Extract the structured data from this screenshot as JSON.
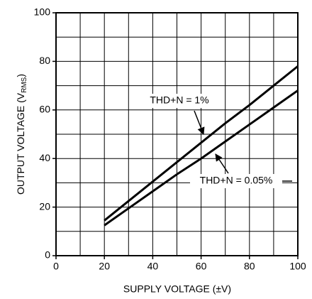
{
  "chart_data": {
    "type": "line",
    "xlabel": "SUPPLY VOLTAGE (±V)",
    "ylabel": {
      "main": "OUTPUT VOLTAGE (V",
      "sub": "RMS",
      "end": ")"
    },
    "x": [
      20,
      30,
      40,
      50,
      60,
      70,
      80,
      90,
      100
    ],
    "series": [
      {
        "name": "THD+N = 1%",
        "color": "#000000",
        "values": [
          14.5,
          22.5,
          30.5,
          38.5,
          46.5,
          54.5,
          62,
          70,
          78
        ]
      },
      {
        "name": "THD+N = 0.05%",
        "color": "#000000",
        "values": [
          12.5,
          19.5,
          26.5,
          33.5,
          40,
          47,
          54,
          61,
          68
        ]
      }
    ],
    "xlim": [
      0,
      100
    ],
    "xticks": [
      0,
      20,
      40,
      60,
      80,
      100
    ],
    "ylim": [
      0,
      100
    ],
    "yticks": [
      0,
      20,
      40,
      60,
      80,
      100
    ],
    "xgrid": [
      10,
      20,
      30,
      40,
      50,
      60,
      70,
      80,
      90
    ],
    "ygrid": [
      10,
      20,
      30,
      40,
      50,
      60,
      70,
      80,
      90
    ],
    "grid": true
  }
}
